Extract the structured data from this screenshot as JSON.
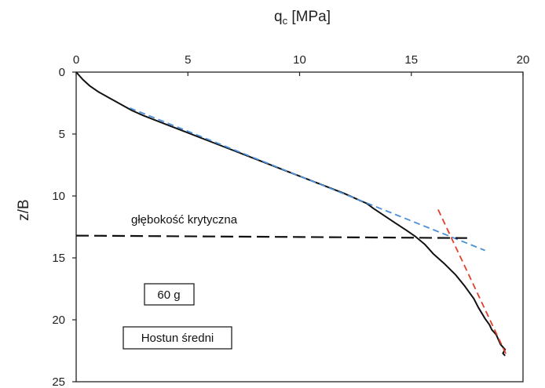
{
  "chart_data": {
    "type": "line",
    "xlabel_main": "q",
    "xlabel_sub": "c",
    "xlabel_rest": " [MPa]",
    "ylabel": "z/B",
    "x_axis_position": "top",
    "y_axis_inverted": true,
    "xlim": [
      0,
      20
    ],
    "ylim": [
      0,
      25
    ],
    "x_ticks": [
      "0",
      "5",
      "10",
      "15",
      "20"
    ],
    "y_ticks": [
      "0",
      "5",
      "10",
      "15",
      "20",
      "25"
    ],
    "grid": false,
    "series": [
      {
        "style": "solid",
        "color": "#111111",
        "x": [
          0.0,
          0.3,
          0.6,
          1.0,
          1.5,
          2.0,
          2.5,
          3.0,
          4.0,
          5.0,
          6.0,
          7.0,
          8.0,
          9.0,
          10.0,
          11.0,
          12.0,
          12.5,
          13.0,
          13.3,
          13.8,
          14.3,
          14.8,
          15.2,
          15.6,
          16.0,
          16.5,
          17.0,
          17.4,
          17.8,
          18.0,
          18.2,
          18.3,
          18.5,
          18.6,
          18.8,
          18.9,
          19.0,
          19.1,
          19.2,
          19.1,
          19.2
        ],
        "y": [
          0.0,
          0.6,
          1.1,
          1.6,
          2.1,
          2.6,
          3.1,
          3.5,
          4.2,
          4.9,
          5.6,
          6.3,
          7.0,
          7.7,
          8.4,
          9.1,
          9.8,
          10.2,
          10.6,
          11.0,
          11.6,
          12.2,
          12.8,
          13.3,
          13.9,
          14.7,
          15.5,
          16.4,
          17.3,
          18.3,
          19.0,
          19.6,
          19.9,
          20.4,
          20.8,
          21.2,
          21.6,
          22.0,
          22.2,
          22.4,
          22.7,
          22.9
        ]
      },
      {
        "style": "dashed",
        "color": "#4a8fd8",
        "x": [
          2.4,
          18.3
        ],
        "y": [
          2.9,
          14.4
        ]
      },
      {
        "style": "dashed",
        "color": "#e0402a",
        "x": [
          16.2,
          19.3
        ],
        "y": [
          11.1,
          23.0
        ]
      },
      {
        "style": "dashed",
        "color": "#111111",
        "x": [
          0.0,
          17.5
        ],
        "y": [
          13.2,
          13.4
        ]
      }
    ],
    "annotations": {
      "critical_depth": "głębokość krytyczna",
      "g_level": "60 g",
      "sand": "Hostun średni"
    }
  }
}
